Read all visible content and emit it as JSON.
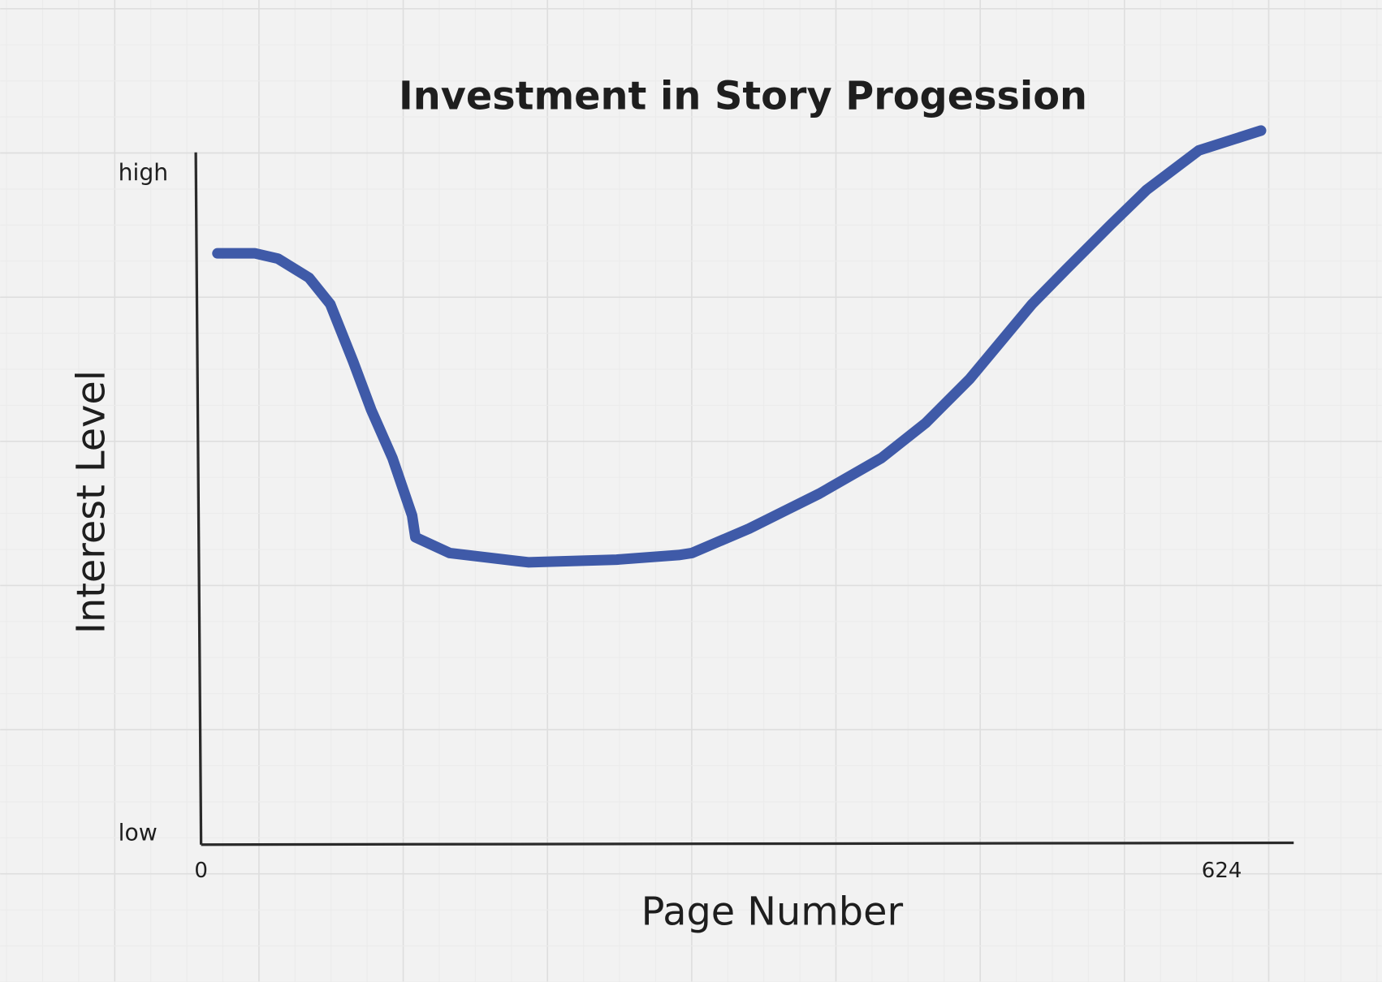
{
  "chart_data": {
    "type": "line",
    "title": "Investment in Story Progession",
    "x_label": "Page Number",
    "y_label": "Interest Level",
    "x": [
      10,
      33,
      47,
      66,
      79,
      93,
      104,
      117,
      129,
      131,
      152,
      200,
      254,
      292,
      300,
      335,
      378,
      416,
      443,
      470,
      508,
      529,
      556,
      578,
      610,
      648
    ],
    "values": [
      87.7,
      87.7,
      86.9,
      84,
      80,
      71.3,
      64,
      56.7,
      48,
      44.7,
      42.3,
      40.9,
      41.3,
      42,
      42.3,
      46,
      51.3,
      56.7,
      62,
      68.7,
      80,
      85.3,
      92,
      97.3,
      103.3,
      106.3
    ],
    "color": "#3f5aa8",
    "xlim": [
      0,
      668
    ],
    "xticks": [
      0,
      624
    ],
    "ylim": [
      -2,
      107
    ],
    "yticks": [
      {
        "value": 0,
        "label": "low"
      },
      {
        "value": 100,
        "label": "high"
      }
    ]
  }
}
